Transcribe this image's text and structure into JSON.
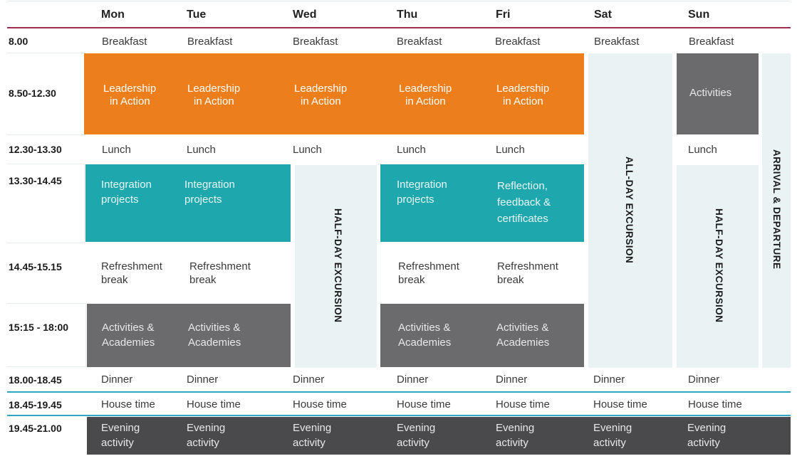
{
  "days": [
    "Mon",
    "Tue",
    "Wed",
    "Thu",
    "Fri",
    "Sat",
    "Sun"
  ],
  "times": [
    "8.00",
    "8.50-12.30",
    "12.30-13.30",
    "13.30-14.45",
    "14.45-15.15",
    "15:15 - 18:00",
    "18.00-18.45",
    "18.45-19.45",
    "19.45-21.00"
  ],
  "breakfast": "Breakfast",
  "leadership": [
    "Leadership",
    "in Action"
  ],
  "activities": "Activities",
  "lunch": "Lunch",
  "integration": [
    "Integration",
    "projects"
  ],
  "reflection": [
    "Reflection,",
    "feedback &",
    "certificates"
  ],
  "refreshment": [
    "Refreshment",
    "break"
  ],
  "academies": [
    "Activities &",
    "Academies"
  ],
  "dinner": "Dinner",
  "house_time": "House time",
  "evening": [
    "Evening",
    "activity"
  ],
  "half_day_excursion": "HALF-DAY EXCURSION",
  "all_day_excursion": "ALL-DAY EXCURSION",
  "arrival_departure": "ARRIVAL & DEPARTURE",
  "colors": {
    "orange": "#ec7f1c",
    "teal": "#1ea7ad",
    "grey": "#6b6b6e",
    "dark": "#4a4a4c",
    "pale": "#e9f3f4",
    "accent_line": "#9c2d4f",
    "teal_line": "#2ea6c4"
  }
}
